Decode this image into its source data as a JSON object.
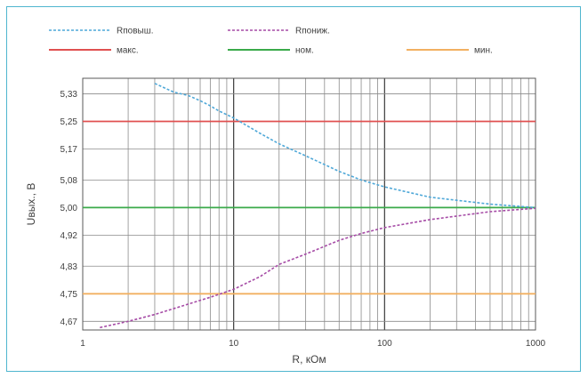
{
  "chart_data": {
    "type": "line",
    "xscale": "log",
    "xlim": [
      1,
      1000
    ],
    "ylim": [
      4.645,
      5.375
    ],
    "xlabel": "R, кОм",
    "ylabel": "Uвых., В",
    "xticks": [
      {
        "value": 1,
        "label": "1"
      },
      {
        "value": 10,
        "label": "10"
      },
      {
        "value": 100,
        "label": "100"
      },
      {
        "value": 1000,
        "label": "1000"
      }
    ],
    "yticks": [
      {
        "value": 4.67,
        "label": "4,67"
      },
      {
        "value": 4.75,
        "label": "4,75"
      },
      {
        "value": 4.83,
        "label": "4,83"
      },
      {
        "value": 4.92,
        "label": "4,92"
      },
      {
        "value": 5.0,
        "label": "5,00"
      },
      {
        "value": 5.08,
        "label": "5,08"
      },
      {
        "value": 5.17,
        "label": "5,17"
      },
      {
        "value": 5.25,
        "label": "5,25"
      },
      {
        "value": 5.33,
        "label": "5,33"
      }
    ],
    "grid": true,
    "legend_position": "top",
    "series": [
      {
        "name": "Rповыш.",
        "color": "#4fa8d8",
        "style": "dashed",
        "x": [
          3,
          4,
          5,
          6,
          7,
          8,
          10,
          15,
          20,
          30,
          50,
          70,
          100,
          200,
          500,
          1000
        ],
        "y": [
          5.36,
          5.335,
          5.325,
          5.31,
          5.295,
          5.28,
          5.26,
          5.215,
          5.185,
          5.15,
          5.105,
          5.08,
          5.06,
          5.03,
          5.01,
          5.0
        ]
      },
      {
        "name": "Rпониж.",
        "color": "#a64ca6",
        "style": "dashed",
        "x": [
          1.3,
          2,
          3,
          5,
          7,
          10,
          15,
          20,
          30,
          50,
          70,
          100,
          200,
          500,
          1000
        ],
        "y": [
          4.652,
          4.67,
          4.69,
          4.72,
          4.74,
          4.763,
          4.8,
          4.835,
          4.865,
          4.905,
          4.925,
          4.942,
          4.965,
          4.988,
          4.998
        ]
      },
      {
        "name": "макс.",
        "color": "#e05050",
        "style": "solid",
        "x": [
          1,
          1000
        ],
        "y": [
          5.25,
          5.25
        ]
      },
      {
        "name": "ном.",
        "color": "#3aaa4a",
        "style": "solid",
        "x": [
          1,
          1000
        ],
        "y": [
          5.0,
          5.0
        ]
      },
      {
        "name": "мин.",
        "color": "#f2b061",
        "style": "solid",
        "x": [
          1,
          1000
        ],
        "y": [
          4.75,
          4.75
        ]
      }
    ]
  }
}
